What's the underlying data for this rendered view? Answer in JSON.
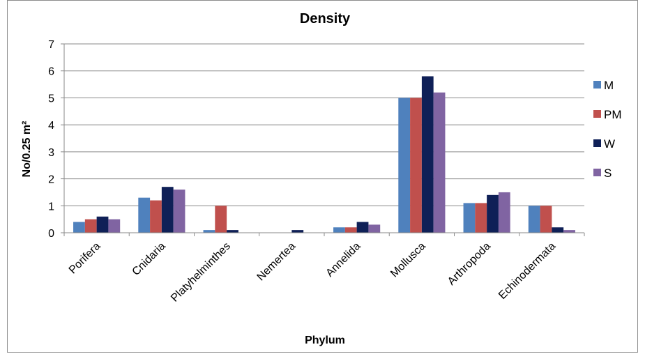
{
  "chart_data": {
    "type": "bar",
    "title": "Density",
    "xlabel": "Phylum",
    "ylabel": "No/0.25 m²",
    "ylim": [
      0,
      7
    ],
    "yticks": [
      "0",
      "1",
      "2",
      "3",
      "4",
      "5",
      "6",
      "7"
    ],
    "grid": true,
    "legend_position": "right",
    "categories": [
      "Porifera",
      "Cnidaria",
      "Platyhelminthes",
      "Nemertea",
      "Annelida",
      "Mollusca",
      "Arthropoda",
      "Echinodermata"
    ],
    "series": [
      {
        "name": "M",
        "color": "#4f81bd",
        "values": [
          0.4,
          1.3,
          0.1,
          0,
          0.2,
          5.0,
          1.1,
          1.0
        ]
      },
      {
        "name": "PM",
        "color": "#c0504d",
        "values": [
          0.5,
          1.2,
          1.0,
          0,
          0.2,
          5.0,
          1.1,
          1.0
        ]
      },
      {
        "name": "W",
        "color": "#0f2057",
        "values": [
          0.6,
          1.7,
          0.1,
          0.1,
          0.4,
          5.8,
          1.4,
          0.2
        ]
      },
      {
        "name": "S",
        "color": "#8064a2",
        "values": [
          0.5,
          1.6,
          0,
          0,
          0.3,
          5.2,
          1.5,
          0.1
        ]
      }
    ]
  }
}
